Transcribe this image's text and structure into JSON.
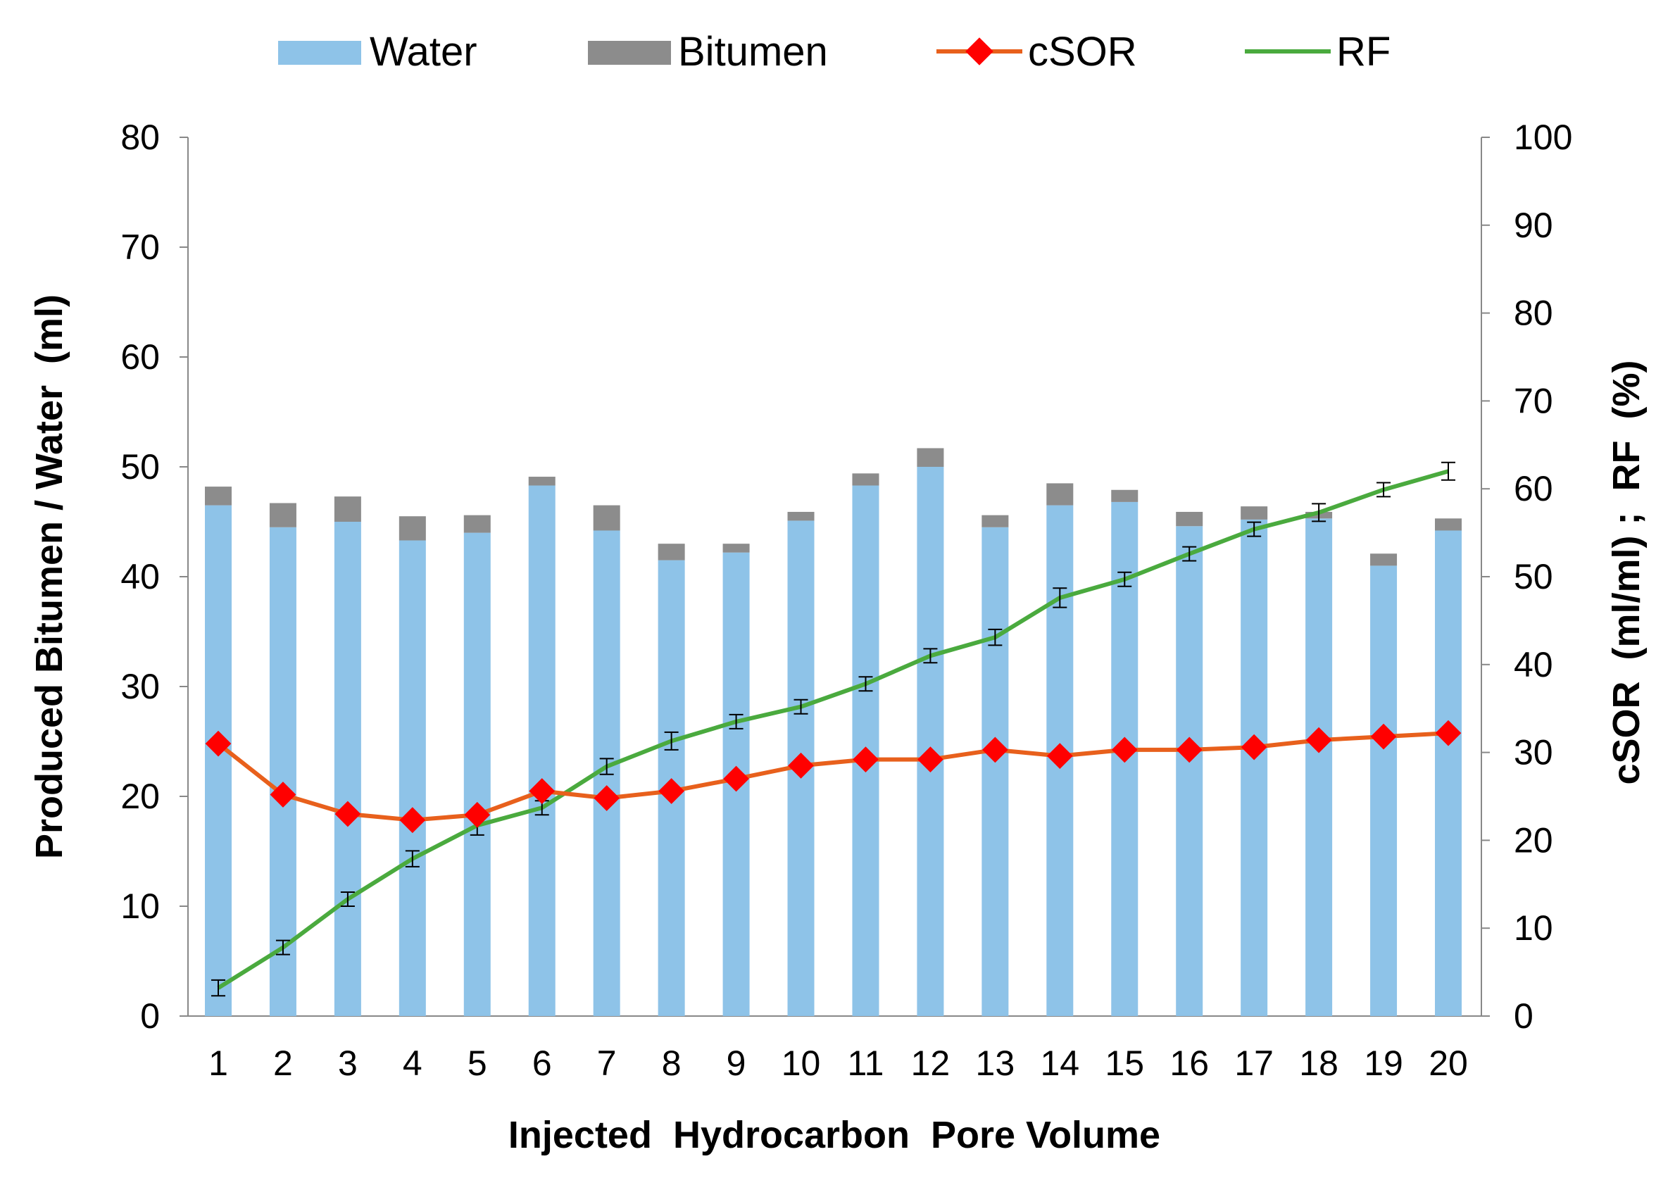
{
  "chart_data": {
    "type": "bar",
    "title": "",
    "xlabel": "Injected  Hydrocarbon  Pore Volume",
    "ylabel": "Produced Bitumen / Water  (ml)",
    "y2label": "cSOR  (ml/ml) ;  RF  (%)",
    "ylim": [
      0,
      80
    ],
    "y2lim": [
      0,
      100
    ],
    "yticks": [
      "0",
      "10",
      "20",
      "30",
      "40",
      "50",
      "60",
      "70",
      "80"
    ],
    "y2ticks": [
      "0",
      "10",
      "20",
      "30",
      "40",
      "50",
      "60",
      "70",
      "80",
      "90",
      "100"
    ],
    "categories": [
      "1",
      "2",
      "3",
      "4",
      "5",
      "6",
      "7",
      "8",
      "9",
      "10",
      "11",
      "12",
      "13",
      "14",
      "15",
      "16",
      "17",
      "18",
      "19",
      "20"
    ],
    "legend_position": "top",
    "series": [
      {
        "name": "Water",
        "kind": "stacked-bar",
        "axis": "left",
        "color": "#8ec3e8",
        "values": [
          46.5,
          44.5,
          45.0,
          43.3,
          44.0,
          48.3,
          44.2,
          41.5,
          42.2,
          45.1,
          48.3,
          50.0,
          44.5,
          46.5,
          46.8,
          44.6,
          45.2,
          45.3,
          41.0,
          44.2
        ]
      },
      {
        "name": "Bitumen",
        "kind": "stacked-bar",
        "axis": "left",
        "color": "#8c8c8c",
        "values": [
          1.7,
          2.2,
          2.3,
          2.2,
          1.6,
          0.8,
          2.3,
          1.5,
          0.8,
          0.8,
          1.1,
          1.7,
          1.1,
          2.0,
          1.1,
          1.3,
          1.2,
          0.6,
          1.1,
          1.1
        ]
      },
      {
        "name": "cSOR",
        "kind": "line-marker",
        "axis": "right",
        "color": "#e8601c",
        "marker_color": "#ff0000",
        "values": [
          31.0,
          25.2,
          23.0,
          22.3,
          22.9,
          25.6,
          24.8,
          25.6,
          27.0,
          28.5,
          29.2,
          29.2,
          30.3,
          29.6,
          30.3,
          30.3,
          30.6,
          31.4,
          31.8,
          32.2
        ]
      },
      {
        "name": "RF",
        "kind": "line-errorbar",
        "axis": "right",
        "color": "#4aaa3e",
        "values": [
          3.2,
          7.8,
          13.3,
          17.9,
          21.7,
          23.7,
          28.4,
          31.3,
          33.5,
          35.2,
          37.8,
          41.0,
          43.1,
          47.6,
          49.7,
          52.6,
          55.4,
          57.3,
          59.9,
          62.0
        ],
        "error": [
          0.9,
          0.8,
          0.8,
          0.9,
          1.1,
          0.8,
          0.9,
          1.0,
          0.8,
          0.8,
          0.8,
          0.8,
          0.9,
          1.1,
          0.8,
          0.8,
          0.8,
          1.0,
          0.8,
          1.0
        ]
      }
    ]
  }
}
